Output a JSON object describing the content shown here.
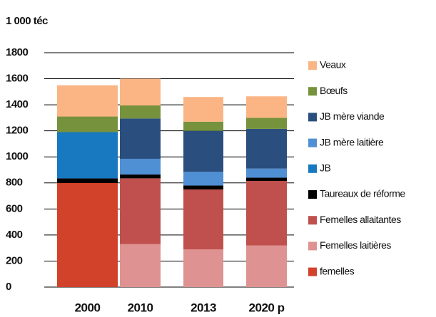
{
  "chart_data": {
    "type": "stacked_bar",
    "title": "1 000 téc",
    "categories": [
      "2000",
      "2010",
      "2013",
      "2020 p"
    ],
    "ylim": [
      0,
      1800
    ],
    "yticks": [
      0,
      200,
      400,
      600,
      800,
      1000,
      1200,
      1400,
      1600,
      1800
    ],
    "grid": true,
    "series": [
      {
        "name": "femelles",
        "color": "#d2412a",
        "values": [
          800,
          null,
          null,
          null
        ]
      },
      {
        "name": "Femelles laitières",
        "color": "#de9292",
        "values": [
          null,
          330,
          290,
          320
        ]
      },
      {
        "name": "Femelles allaitantes",
        "color": "#c0504d",
        "values": [
          null,
          505,
          460,
          495
        ]
      },
      {
        "name": "Taureaux de réforme",
        "color": "#000000",
        "values": [
          35,
          30,
          30,
          25
        ]
      },
      {
        "name": "JB",
        "color": "#1878c0",
        "values": [
          355,
          null,
          null,
          null
        ]
      },
      {
        "name": "JB mère laitière",
        "color": "#4f8fd4",
        "values": [
          null,
          120,
          105,
          70
        ]
      },
      {
        "name": "JB mère viande",
        "color": "#2a4f7e",
        "values": [
          null,
          310,
          315,
          305
        ]
      },
      {
        "name": "Bœufs",
        "color": "#76923c",
        "values": [
          120,
          100,
          70,
          85
        ]
      },
      {
        "name": "Veaux",
        "color": "#fbb584",
        "values": [
          240,
          205,
          190,
          165
        ]
      }
    ]
  }
}
